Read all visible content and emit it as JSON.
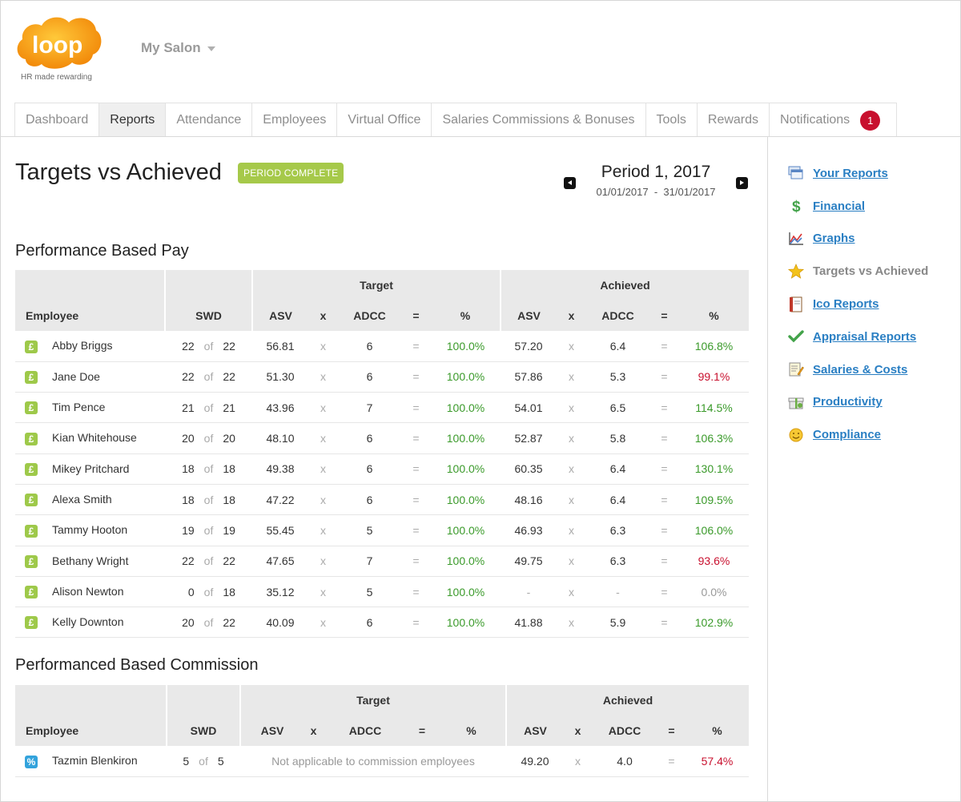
{
  "app": {
    "logo_text": "loop",
    "logo_tagline": "HR made rewarding",
    "salon_name": "My Salon"
  },
  "tabs": [
    {
      "label": "Dashboard"
    },
    {
      "label": "Reports"
    },
    {
      "label": "Attendance"
    },
    {
      "label": "Employees"
    },
    {
      "label": "Virtual Office"
    },
    {
      "label": "Salaries Commissions & Bonuses"
    },
    {
      "label": "Tools"
    },
    {
      "label": "Rewards"
    },
    {
      "label": "Notifications",
      "badge": "1"
    }
  ],
  "page": {
    "title": "Targets vs Achieved",
    "status": "PERIOD COMPLETE",
    "period_title": "Period 1, 2017",
    "period_start": "01/01/2017",
    "period_sep": "-",
    "period_end": "31/01/2017"
  },
  "pay": {
    "title": "Performance Based Pay",
    "headers": {
      "target": "Target",
      "achieved": "Achieved",
      "employee": "Employee",
      "swd": "SWD",
      "asv": "ASV",
      "x": "x",
      "adcc": "ADCC",
      "eq": "=",
      "pct": "%"
    },
    "of": "of",
    "rows": [
      {
        "name": "Abby Briggs",
        "icon": "£",
        "swd": "22",
        "swd_of": "22",
        "t_asv": "56.81",
        "t_adcc": "6",
        "t_pct": "100.0%",
        "a_asv": "57.20",
        "a_adcc": "6.4",
        "a_pct": "106.8%",
        "a_status": "g"
      },
      {
        "name": "Jane Doe",
        "icon": "£",
        "swd": "22",
        "swd_of": "22",
        "t_asv": "51.30",
        "t_adcc": "6",
        "t_pct": "100.0%",
        "a_asv": "57.86",
        "a_adcc": "5.3",
        "a_pct": "99.1%",
        "a_status": "r"
      },
      {
        "name": "Tim Pence",
        "icon": "£",
        "swd": "21",
        "swd_of": "21",
        "t_asv": "43.96",
        "t_adcc": "7",
        "t_pct": "100.0%",
        "a_asv": "54.01",
        "a_adcc": "6.5",
        "a_pct": "114.5%",
        "a_status": "g"
      },
      {
        "name": "Kian Whitehouse",
        "icon": "£",
        "swd": "20",
        "swd_of": "20",
        "t_asv": "48.10",
        "t_adcc": "6",
        "t_pct": "100.0%",
        "a_asv": "52.87",
        "a_adcc": "5.8",
        "a_pct": "106.3%",
        "a_status": "g"
      },
      {
        "name": "Mikey Pritchard",
        "icon": "£",
        "swd": "18",
        "swd_of": "18",
        "t_asv": "49.38",
        "t_adcc": "6",
        "t_pct": "100.0%",
        "a_asv": "60.35",
        "a_adcc": "6.4",
        "a_pct": "130.1%",
        "a_status": "g"
      },
      {
        "name": "Alexa Smith",
        "icon": "£",
        "swd": "18",
        "swd_of": "18",
        "t_asv": "47.22",
        "t_adcc": "6",
        "t_pct": "100.0%",
        "a_asv": "48.16",
        "a_adcc": "6.4",
        "a_pct": "109.5%",
        "a_status": "g"
      },
      {
        "name": "Tammy Hooton",
        "icon": "£",
        "swd": "19",
        "swd_of": "19",
        "t_asv": "55.45",
        "t_adcc": "5",
        "t_pct": "100.0%",
        "a_asv": "46.93",
        "a_adcc": "6.3",
        "a_pct": "106.0%",
        "a_status": "g"
      },
      {
        "name": "Bethany Wright",
        "icon": "£",
        "swd": "22",
        "swd_of": "22",
        "t_asv": "47.65",
        "t_adcc": "7",
        "t_pct": "100.0%",
        "a_asv": "49.75",
        "a_adcc": "6.3",
        "a_pct": "93.6%",
        "a_status": "r"
      },
      {
        "name": "Alison Newton",
        "icon": "£",
        "swd": "0",
        "swd_of": "18",
        "t_asv": "35.12",
        "t_adcc": "5",
        "t_pct": "100.0%",
        "a_asv": "-",
        "a_adcc": "-",
        "a_pct": "0.0%",
        "a_status": "gr"
      },
      {
        "name": "Kelly Downton",
        "icon": "£",
        "swd": "20",
        "swd_of": "22",
        "t_asv": "40.09",
        "t_adcc": "6",
        "t_pct": "100.0%",
        "a_asv": "41.88",
        "a_adcc": "5.9",
        "a_pct": "102.9%",
        "a_status": "g"
      }
    ]
  },
  "commission": {
    "title": "Performanced Based Commission",
    "headers": {
      "target": "Target",
      "achieved": "Achieved",
      "employee": "Employee",
      "swd": "SWD",
      "asv": "ASV",
      "x": "x",
      "adcc": "ADCC",
      "eq": "=",
      "pct": "%"
    },
    "of": "of",
    "rows": [
      {
        "name": "Tazmin Blenkiron",
        "icon": "%",
        "swd": "5",
        "swd_of": "5",
        "target_note": "Not applicable to commission employees",
        "a_asv": "49.20",
        "a_adcc": "4.0",
        "a_pct": "57.4%",
        "a_status": "r"
      }
    ]
  },
  "sidebar": {
    "items": [
      {
        "label": "Your Reports",
        "icon": "reports-icon",
        "link": true
      },
      {
        "label": "Financial",
        "icon": "dollar-icon",
        "link": true
      },
      {
        "label": "Graphs",
        "icon": "graph-icon",
        "link": true
      },
      {
        "label": "Targets vs Achieved",
        "icon": "star-icon",
        "link": false
      },
      {
        "label": "Ico Reports",
        "icon": "book-icon",
        "link": true
      },
      {
        "label": "Appraisal Reports",
        "icon": "check-icon",
        "link": true
      },
      {
        "label": "Salaries & Costs",
        "icon": "notepad-icon",
        "link": true
      },
      {
        "label": "Productivity",
        "icon": "gift-icon",
        "link": true
      },
      {
        "label": "Compliance",
        "icon": "smiley-icon",
        "link": true
      }
    ]
  },
  "colors": {
    "accent_orange": "#f7a21b",
    "status_green": "#3a9a2a",
    "status_red": "#c8102e",
    "link_blue": "#2a7fc3",
    "badge_green": "#a6c94a"
  }
}
